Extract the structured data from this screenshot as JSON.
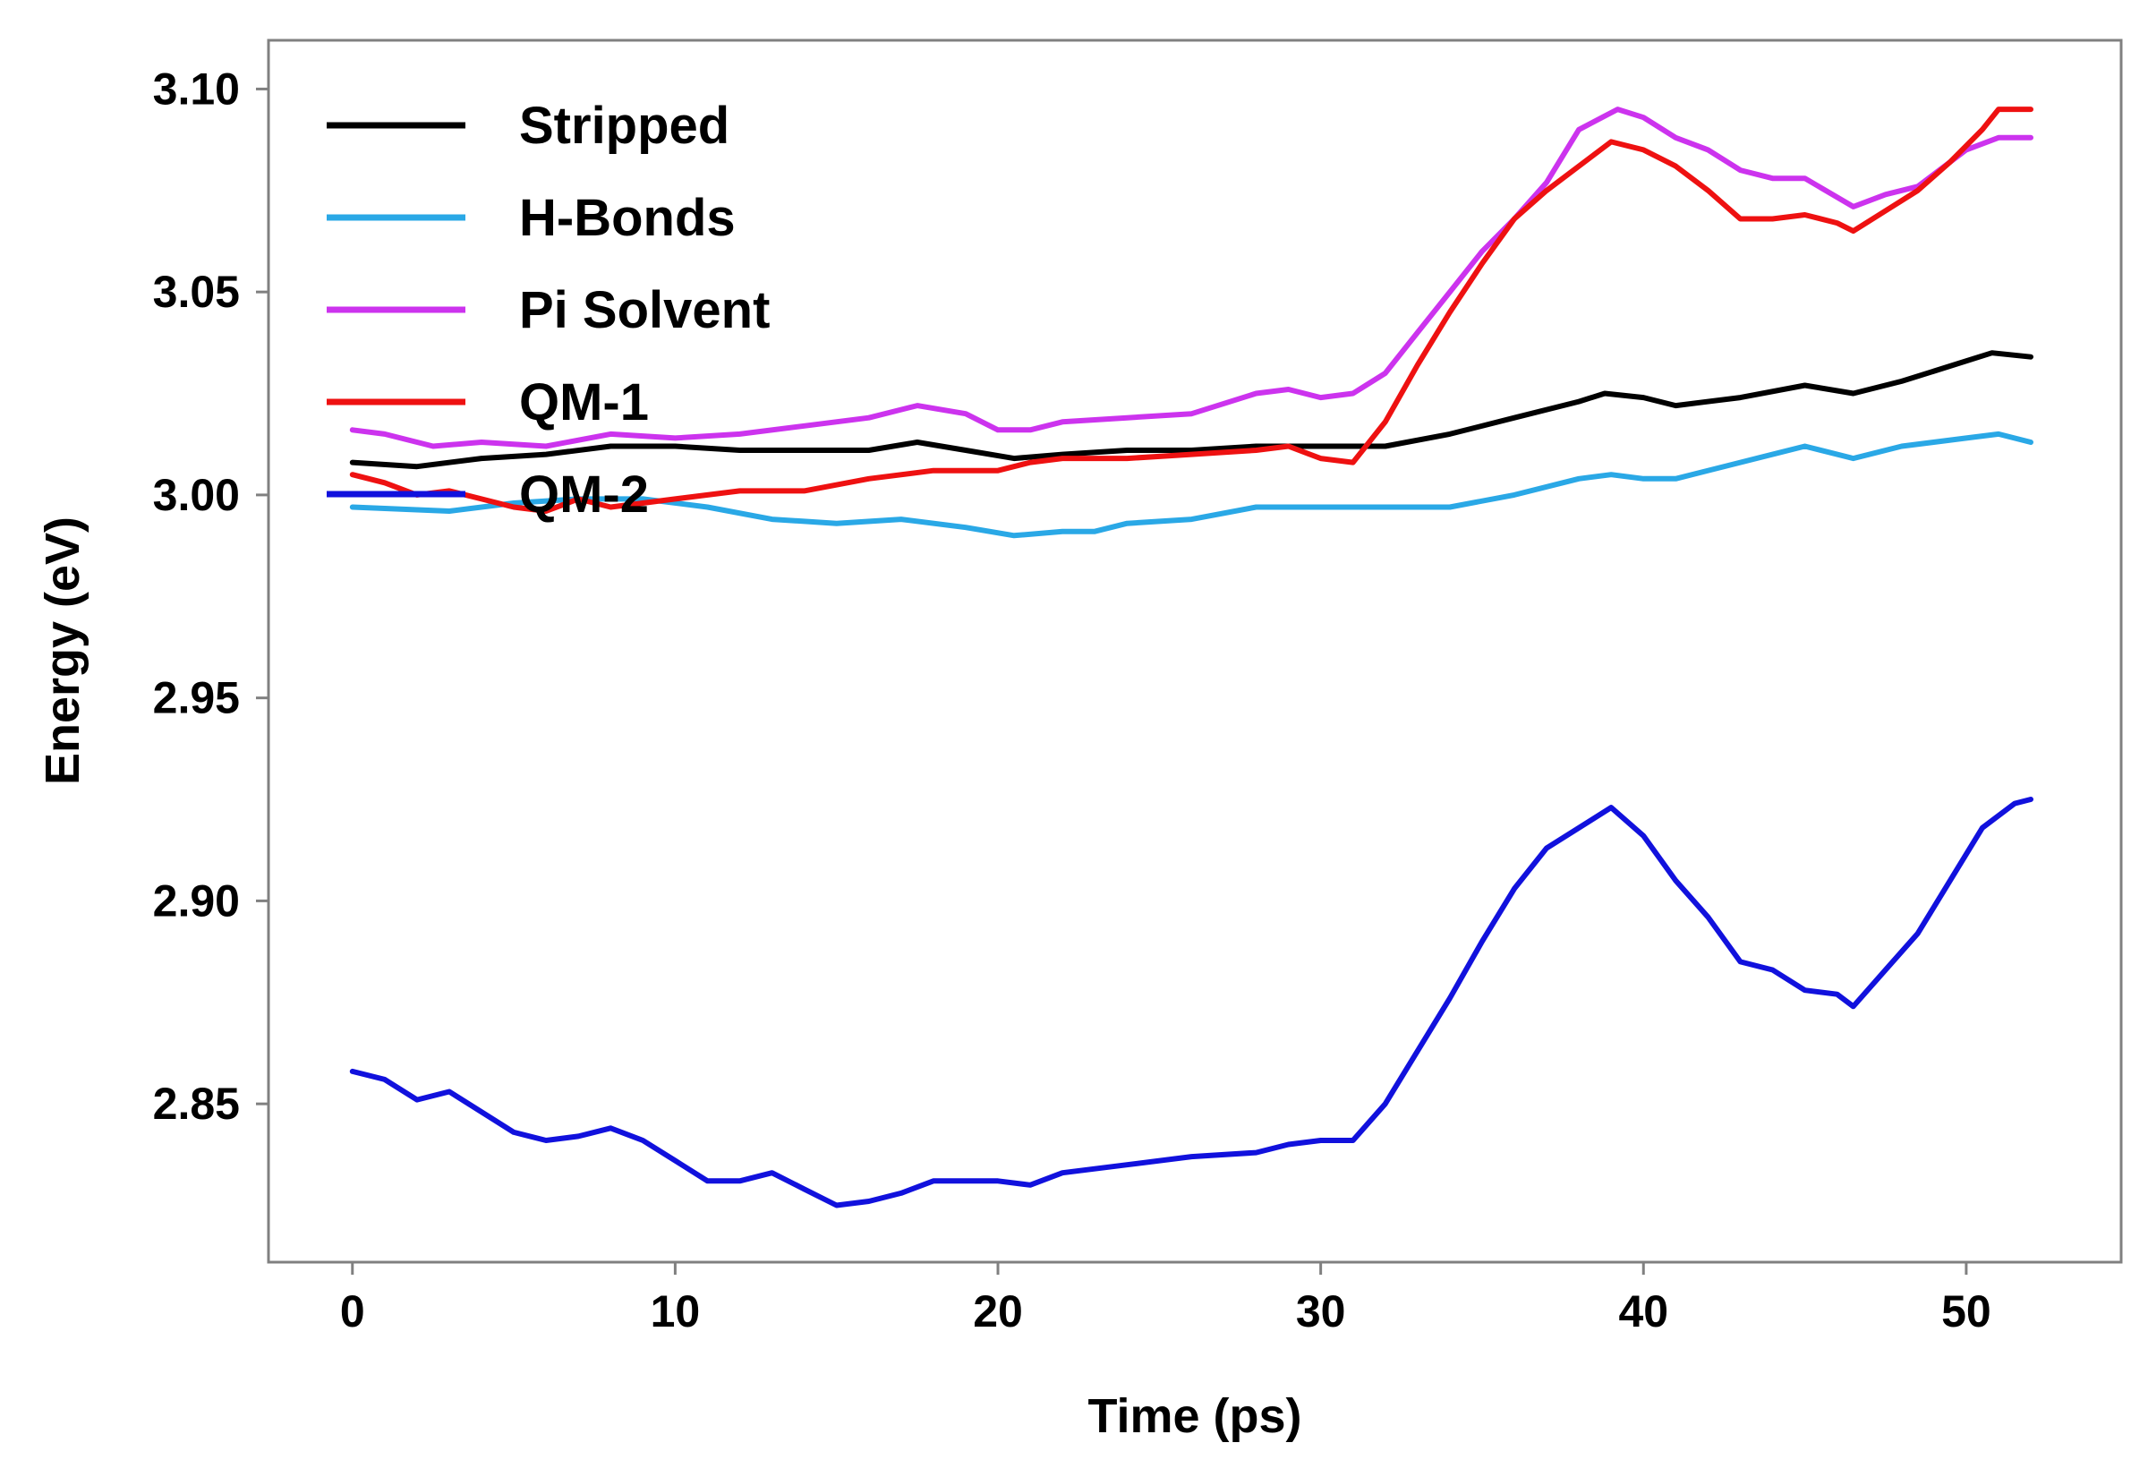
{
  "chart_data": {
    "type": "line",
    "xlabel": "Time (ps)",
    "ylabel": "Energy (eV)",
    "xlim": [
      -2.6,
      54.8
    ],
    "ylim": [
      2.811,
      3.112
    ],
    "xticks": [
      0,
      10,
      20,
      30,
      40,
      50
    ],
    "yticks": [
      2.85,
      2.9,
      2.95,
      3.0,
      3.05,
      3.1
    ],
    "x_tick_labels": [
      "0",
      "10",
      "20",
      "30",
      "40",
      "50"
    ],
    "y_tick_labels": [
      "2.85",
      "2.90",
      "2.95",
      "3.00",
      "3.05",
      "3.10"
    ],
    "grid": false,
    "legend_position": "top-left",
    "series": [
      {
        "name": "Stripped",
        "color": "#000000",
        "x": [
          0,
          2,
          4,
          6,
          8,
          10,
          12,
          14,
          16,
          17.5,
          19,
          20.5,
          22,
          24,
          26,
          28,
          30,
          32,
          34,
          36,
          38,
          38.8,
          40,
          41,
          43,
          45,
          46.5,
          48,
          50,
          50.8,
          52
        ],
        "y": [
          3.008,
          3.007,
          3.009,
          3.01,
          3.012,
          3.012,
          3.011,
          3.011,
          3.011,
          3.013,
          3.011,
          3.009,
          3.01,
          3.011,
          3.011,
          3.012,
          3.012,
          3.012,
          3.015,
          3.019,
          3.023,
          3.025,
          3.024,
          3.022,
          3.024,
          3.027,
          3.025,
          3.028,
          3.033,
          3.035,
          3.034
        ]
      },
      {
        "name": "H-Bonds",
        "color": "#2aa8e6",
        "x": [
          0,
          3,
          5,
          7,
          9,
          11,
          13,
          15,
          17,
          19,
          20.5,
          22,
          23,
          24,
          26,
          28,
          30,
          32,
          34,
          36,
          38,
          39,
          40,
          41,
          43,
          45,
          46.5,
          48,
          50,
          51,
          52
        ],
        "y": [
          2.997,
          2.996,
          2.998,
          2.999,
          2.999,
          2.997,
          2.994,
          2.993,
          2.994,
          2.992,
          2.99,
          2.991,
          2.991,
          2.993,
          2.994,
          2.997,
          2.997,
          2.997,
          2.997,
          3.0,
          3.004,
          3.005,
          3.004,
          3.004,
          3.008,
          3.012,
          3.009,
          3.012,
          3.014,
          3.015,
          3.013
        ]
      },
      {
        "name": "Pi Solvent",
        "color": "#cc33ee",
        "x": [
          0,
          1,
          2.5,
          4,
          6,
          8,
          10,
          12,
          14,
          16,
          17.5,
          19,
          20,
          21,
          22,
          24,
          26,
          28,
          29,
          30,
          31,
          32,
          33,
          34,
          35,
          36,
          37,
          38,
          39.2,
          40,
          41,
          42,
          43,
          44,
          45,
          46.5,
          47.5,
          48.5,
          50,
          51,
          52
        ],
        "y": [
          3.016,
          3.015,
          3.012,
          3.013,
          3.012,
          3.015,
          3.014,
          3.015,
          3.017,
          3.019,
          3.022,
          3.02,
          3.016,
          3.016,
          3.018,
          3.019,
          3.02,
          3.025,
          3.026,
          3.024,
          3.025,
          3.03,
          3.04,
          3.05,
          3.06,
          3.068,
          3.077,
          3.09,
          3.095,
          3.093,
          3.088,
          3.085,
          3.08,
          3.078,
          3.078,
          3.071,
          3.074,
          3.076,
          3.085,
          3.088,
          3.088
        ]
      },
      {
        "name": "QM-1",
        "color": "#ee1111",
        "x": [
          0,
          1,
          2,
          3,
          4,
          5,
          6,
          7,
          8,
          9,
          10,
          12,
          14,
          16,
          18,
          19,
          20,
          21,
          22,
          24,
          26,
          28,
          29,
          30,
          31,
          32,
          33,
          34,
          35,
          36,
          37,
          38,
          39,
          40,
          41,
          42,
          43,
          44,
          45,
          46,
          46.5,
          47.5,
          48.5,
          49.5,
          50.5,
          51,
          52
        ],
        "y": [
          3.005,
          3.003,
          3.0,
          3.001,
          2.999,
          2.997,
          2.996,
          2.999,
          2.997,
          2.998,
          2.999,
          3.001,
          3.001,
          3.004,
          3.006,
          3.006,
          3.006,
          3.008,
          3.009,
          3.009,
          3.01,
          3.011,
          3.012,
          3.009,
          3.008,
          3.018,
          3.032,
          3.045,
          3.057,
          3.068,
          3.075,
          3.081,
          3.087,
          3.085,
          3.081,
          3.075,
          3.068,
          3.068,
          3.069,
          3.067,
          3.065,
          3.07,
          3.075,
          3.082,
          3.09,
          3.095,
          3.095
        ]
      },
      {
        "name": "QM-2",
        "color": "#1111dd",
        "x": [
          0,
          1,
          2,
          3,
          4,
          5,
          6,
          7,
          8,
          9,
          10,
          11,
          12,
          13,
          14,
          15,
          16,
          17,
          18,
          20,
          21,
          22,
          24,
          26,
          28,
          29,
          30,
          31,
          32,
          33,
          34,
          35,
          36,
          37,
          38,
          39,
          40,
          41,
          42,
          43,
          44,
          45,
          46,
          46.5,
          47.5,
          48.5,
          49.5,
          50.5,
          51.5,
          52
        ],
        "y": [
          2.858,
          2.856,
          2.851,
          2.853,
          2.848,
          2.843,
          2.841,
          2.842,
          2.844,
          2.841,
          2.836,
          2.831,
          2.831,
          2.833,
          2.829,
          2.825,
          2.826,
          2.828,
          2.831,
          2.831,
          2.83,
          2.833,
          2.835,
          2.837,
          2.838,
          2.84,
          2.841,
          2.841,
          2.85,
          2.863,
          2.876,
          2.89,
          2.903,
          2.913,
          2.918,
          2.923,
          2.916,
          2.905,
          2.896,
          2.885,
          2.883,
          2.878,
          2.877,
          2.874,
          2.883,
          2.892,
          2.905,
          2.918,
          2.924,
          2.925
        ]
      }
    ]
  }
}
